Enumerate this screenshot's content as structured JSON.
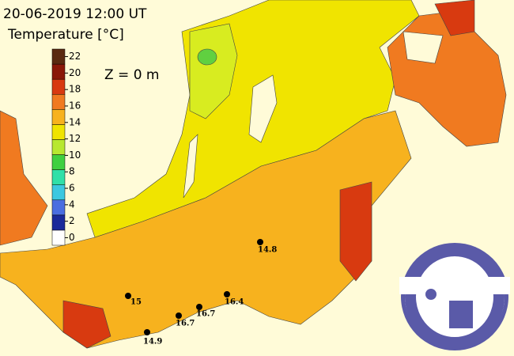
{
  "header": {
    "datetime": "20-06-2019 12:00 UT",
    "quantity": "Temperature [°C]"
  },
  "depth_label": "Z = 0 m",
  "colorbar": {
    "ticks": [
      0,
      2,
      4,
      6,
      8,
      10,
      12,
      14,
      16,
      18,
      20,
      22
    ],
    "colors": [
      "#ffffff",
      "#1a2a9a",
      "#4a6ee0",
      "#3cc8e0",
      "#30e0a8",
      "#40d040",
      "#b8e830",
      "#f0e400",
      "#f7b21e",
      "#f07a20",
      "#d83a10",
      "#8a1808",
      "#5a2a10"
    ]
  },
  "stations": [
    {
      "label": "14.8"
    },
    {
      "label": "15"
    },
    {
      "label": "16.7"
    },
    {
      "label": "16.7"
    },
    {
      "label": "16.4"
    },
    {
      "label": "14.9"
    }
  ]
}
